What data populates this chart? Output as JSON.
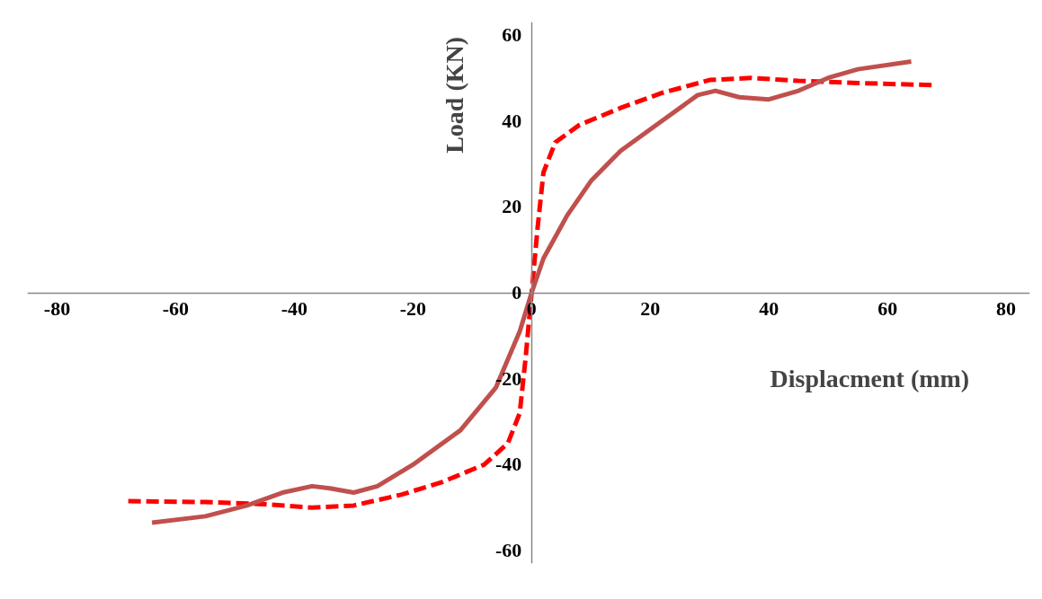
{
  "chart_data": {
    "type": "line",
    "xlabel": "Displacment (mm)",
    "ylabel": "Load (KN)",
    "xlim": [
      -85,
      84
    ],
    "ylim": [
      -63,
      63
    ],
    "xticks": [
      -80,
      -60,
      -40,
      -20,
      0,
      20,
      40,
      60,
      80
    ],
    "yticks": [
      -60,
      -40,
      -20,
      0,
      20,
      40,
      60
    ],
    "grid": false,
    "marker": "none",
    "series": [
      {
        "color": "#ff0000",
        "line_style": "dashed",
        "x": [
          -68,
          -55,
          -45,
          -37,
          -30,
          -22,
          -15,
          -8,
          -4,
          -2,
          -1,
          0,
          1,
          2,
          4,
          8,
          15,
          22,
          30,
          37,
          45,
          55,
          68
        ],
        "values": [
          -48.5,
          -48.7,
          -49.2,
          -50,
          -49.5,
          -47,
          -44,
          -40,
          -35,
          -28,
          -15,
          0,
          15,
          28,
          35,
          39,
          43,
          46.5,
          49.5,
          50,
          49.3,
          48.8,
          48.3
        ]
      },
      {
        "color": "#c0504d",
        "line_style": "solid",
        "x": [
          -64,
          -55,
          -48,
          -42,
          -37,
          -34,
          -30,
          -26,
          -20,
          -12,
          -6,
          -2,
          0,
          2,
          6,
          10,
          15,
          22,
          28,
          31,
          35,
          40,
          45,
          50,
          55,
          64
        ],
        "values": [
          -53.5,
          -52,
          -49.5,
          -46.5,
          -45,
          -45.5,
          -46.5,
          -45,
          -40,
          -32,
          -22,
          -9,
          0,
          8,
          18,
          26,
          33,
          40,
          46,
          47,
          45.5,
          45,
          47,
          50,
          52,
          53.8
        ]
      }
    ]
  }
}
